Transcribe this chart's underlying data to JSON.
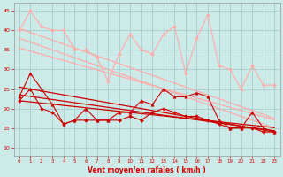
{
  "x": [
    0,
    1,
    2,
    3,
    4,
    5,
    6,
    7,
    8,
    9,
    10,
    11,
    12,
    13,
    14,
    15,
    16,
    17,
    18,
    19,
    20,
    21,
    22,
    23
  ],
  "series": [
    {
      "name": "rafales_jagged",
      "color": "#ffaaaa",
      "linewidth": 0.8,
      "marker": "D",
      "markersize": 2.0,
      "values": [
        40,
        45,
        41,
        40,
        40,
        35,
        35,
        33,
        27,
        34,
        39,
        35,
        34,
        39,
        41,
        29,
        38,
        44,
        31,
        30,
        25,
        31,
        26,
        26
      ]
    },
    {
      "name": "rafales_trend1",
      "color": "#ffaaaa",
      "linewidth": 0.9,
      "marker": null,
      "markersize": 0,
      "values": [
        40.5,
        39.5,
        38.5,
        37.5,
        36.5,
        35.5,
        34.5,
        33.5,
        32.5,
        31.5,
        30.5,
        29.5,
        28.5,
        27.5,
        26.5,
        25.5,
        24.5,
        23.5,
        22.5,
        21.5,
        20.5,
        19.5,
        18.5,
        17.5
      ]
    },
    {
      "name": "rafales_trend2",
      "color": "#ffaaaa",
      "linewidth": 0.9,
      "marker": null,
      "markersize": 0,
      "values": [
        38.0,
        37.0,
        36.0,
        35.0,
        34.0,
        33.0,
        32.0,
        31.0,
        30.0,
        29.0,
        28.0,
        27.0,
        26.0,
        25.0,
        24.0,
        23.0,
        22.0,
        21.0,
        20.0,
        19.0,
        18.0,
        17.0,
        16.0,
        15.0
      ]
    },
    {
      "name": "rafales_trend3",
      "color": "#ffaaaa",
      "linewidth": 0.9,
      "marker": null,
      "markersize": 0,
      "values": [
        35.5,
        34.7,
        33.9,
        33.1,
        32.3,
        31.5,
        30.7,
        29.9,
        29.1,
        28.3,
        27.5,
        26.7,
        25.9,
        25.1,
        24.3,
        23.5,
        22.7,
        21.9,
        21.1,
        20.3,
        19.5,
        18.7,
        17.9,
        17.1
      ]
    },
    {
      "name": "vent_moyen_jagged",
      "color": "#cc0000",
      "linewidth": 0.8,
      "marker": "^",
      "markersize": 2.5,
      "values": [
        23,
        29,
        25,
        21,
        16,
        17,
        20,
        17,
        17,
        19,
        19,
        22,
        21,
        25,
        23,
        23,
        24,
        23,
        17,
        15,
        15,
        19,
        15,
        14
      ]
    },
    {
      "name": "vent_moyen_trend1",
      "color": "#cc0000",
      "linewidth": 0.9,
      "marker": null,
      "markersize": 0,
      "values": [
        25.5,
        25.0,
        24.5,
        24.0,
        23.5,
        23.0,
        22.5,
        22.0,
        21.5,
        21.0,
        20.5,
        20.0,
        19.5,
        19.0,
        18.5,
        18.0,
        17.5,
        17.0,
        16.5,
        16.0,
        15.5,
        15.0,
        14.5,
        14.0
      ]
    },
    {
      "name": "vent_moyen_trend2",
      "color": "#cc0000",
      "linewidth": 0.9,
      "marker": null,
      "markersize": 0,
      "values": [
        23.5,
        23.1,
        22.7,
        22.3,
        21.9,
        21.5,
        21.1,
        20.7,
        20.3,
        19.9,
        19.5,
        19.1,
        18.7,
        18.3,
        17.9,
        17.5,
        17.1,
        16.7,
        16.3,
        15.9,
        15.5,
        15.1,
        14.7,
        14.3
      ]
    },
    {
      "name": "vent_moyen_trend3",
      "color": "#cc0000",
      "linewidth": 0.9,
      "marker": null,
      "markersize": 0,
      "values": [
        22.0,
        21.7,
        21.4,
        21.1,
        20.8,
        20.5,
        20.2,
        19.9,
        19.6,
        19.3,
        19.0,
        18.7,
        18.4,
        18.1,
        17.8,
        17.5,
        17.2,
        16.9,
        16.6,
        16.3,
        16.0,
        15.7,
        15.4,
        15.1
      ]
    },
    {
      "name": "vent_moyen_low_jagged",
      "color": "#cc0000",
      "linewidth": 0.8,
      "marker": "D",
      "markersize": 2.0,
      "values": [
        22,
        25,
        20,
        19,
        16,
        17,
        17,
        17,
        17,
        17,
        18,
        17,
        19,
        20,
        19,
        18,
        18,
        17,
        16,
        15,
        15,
        15,
        14,
        14
      ]
    }
  ],
  "xlabel": "Vent moyen/en rafales ( km/h )",
  "ylabel_ticks": [
    10,
    15,
    20,
    25,
    30,
    35,
    40,
    45
  ],
  "ylim": [
    8,
    47
  ],
  "xlim": [
    -0.5,
    23.5
  ],
  "bg_color": "#cceae8",
  "grid_color": "#aacccc",
  "tick_color": "#cc0000",
  "label_color": "#cc0000",
  "figsize": [
    3.2,
    2.0
  ],
  "dpi": 100
}
